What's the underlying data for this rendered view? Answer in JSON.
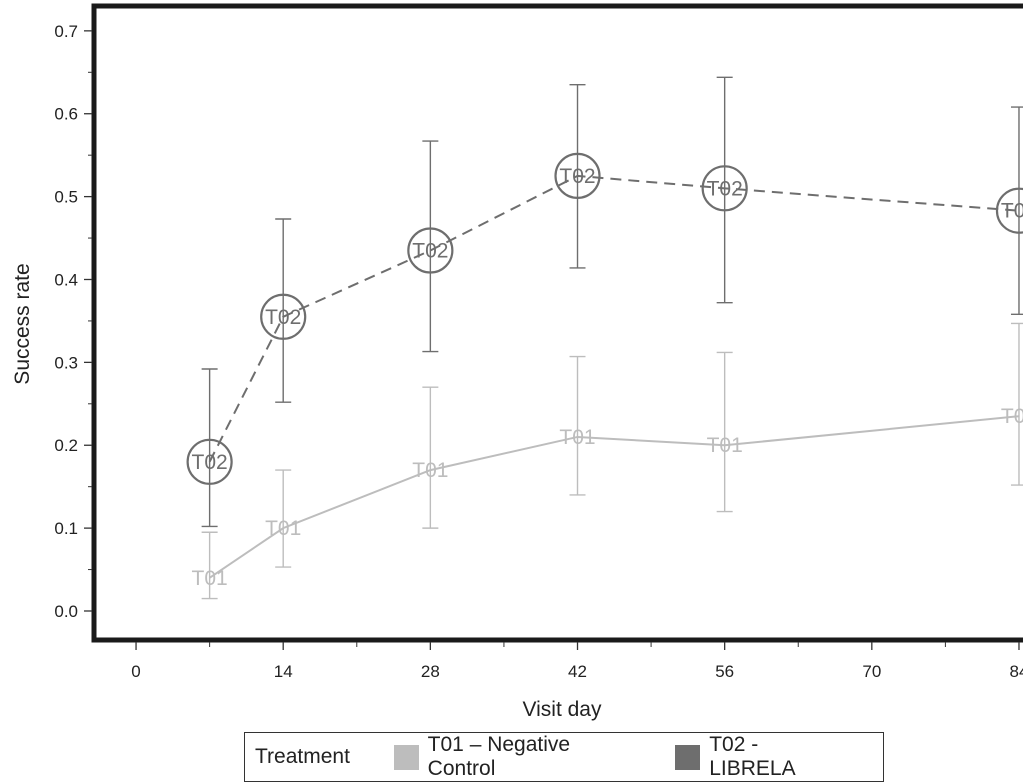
{
  "colors": {
    "t01": "#bdbdbd",
    "t02": "#6e6e6e",
    "frame": "#1a1a1a"
  },
  "chart_data": {
    "type": "line",
    "xlabel": "Visit day",
    "ylabel": "Success rate",
    "xlim": [
      -4,
      86
    ],
    "ylim": [
      -0.035,
      0.73
    ],
    "x_ticks": [
      0,
      14,
      28,
      42,
      56,
      70,
      84
    ],
    "x_tick_labels": [
      "0",
      "14",
      "28",
      "42",
      "56",
      "70",
      "84"
    ],
    "y_ticks": [
      0.0,
      0.1,
      0.2,
      0.3,
      0.4,
      0.5,
      0.6,
      0.7
    ],
    "y_tick_labels": [
      "0.0",
      "0.1",
      "0.2",
      "0.3",
      "0.4",
      "0.5",
      "0.6",
      "0.7"
    ],
    "grid": false,
    "legend_position": "bottom",
    "series": [
      {
        "marker": "T01",
        "line_style": "solid",
        "x": [
          7,
          14,
          28,
          42,
          56,
          84
        ],
        "y": [
          0.04,
          0.1,
          0.17,
          0.21,
          0.2,
          0.235
        ],
        "ci_low": [
          0.015,
          0.053,
          0.1,
          0.14,
          0.12,
          0.152
        ],
        "ci_high": [
          0.095,
          0.17,
          0.27,
          0.307,
          0.312,
          0.347
        ]
      },
      {
        "marker": "T02",
        "line_style": "dashed",
        "x": [
          7,
          14,
          28,
          42,
          56,
          84
        ],
        "y": [
          0.18,
          0.355,
          0.435,
          0.525,
          0.51,
          0.483
        ],
        "ci_low": [
          0.102,
          0.252,
          0.313,
          0.414,
          0.372,
          0.358
        ],
        "ci_high": [
          0.292,
          0.473,
          0.567,
          0.635,
          0.644,
          0.608
        ]
      }
    ]
  },
  "legend": {
    "title": "Treatment",
    "items": [
      {
        "label": "T01 – Negative Control",
        "color": "#bdbdbd"
      },
      {
        "label": "T02 - LIBRELA",
        "color": "#6e6e6e"
      }
    ]
  }
}
